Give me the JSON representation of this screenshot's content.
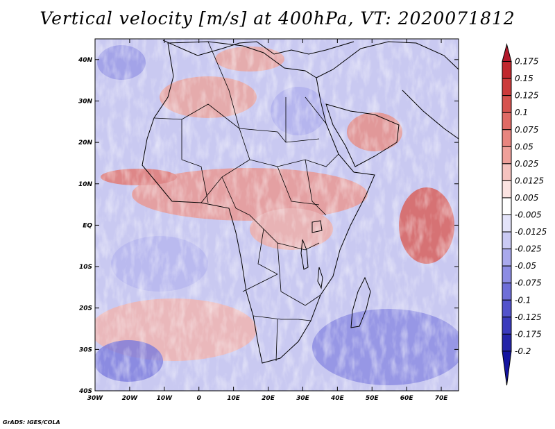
{
  "title": "Vertical velocity [m/s] at 400hPa, VT: 2020071812",
  "credit": "GrADS: IGES/COLA",
  "map": {
    "lat_labels": [
      "40N",
      "30N",
      "20N",
      "10N",
      "EQ",
      "10S",
      "20S",
      "30S",
      "40S"
    ],
    "lat_values": [
      40,
      30,
      20,
      10,
      0,
      -10,
      -20,
      -30,
      -40
    ],
    "lon_labels": [
      "30W",
      "20W",
      "10W",
      "0",
      "10E",
      "20E",
      "30E",
      "40E",
      "50E",
      "60E",
      "70E"
    ],
    "lon_values": [
      -30,
      -20,
      -10,
      0,
      10,
      20,
      30,
      40,
      50,
      60,
      70
    ],
    "lon_range": [
      -30,
      75
    ],
    "lat_range": [
      -40,
      45
    ]
  },
  "colorbar": {
    "labels": [
      "0.175",
      "0.15",
      "0.125",
      "0.1",
      "0.075",
      "0.05",
      "0.025",
      "0.0125",
      "0.005",
      "-0.005",
      "-0.0125",
      "-0.025",
      "-0.05",
      "-0.075",
      "-0.1",
      "-0.125",
      "-0.175",
      "-0.2"
    ],
    "colors": [
      "#b2182b",
      "#c1272d",
      "#cc3b3b",
      "#d6534f",
      "#e06a65",
      "#e8857f",
      "#efa09a",
      "#f6c3bf",
      "#fbe3e1",
      "#ffffff",
      "#e4e4fa",
      "#cacaf4",
      "#a9a9ec",
      "#8c8ce3",
      "#6e6ed8",
      "#5252cb",
      "#3a3abc",
      "#2424a8",
      "#1414a0"
    ]
  }
}
